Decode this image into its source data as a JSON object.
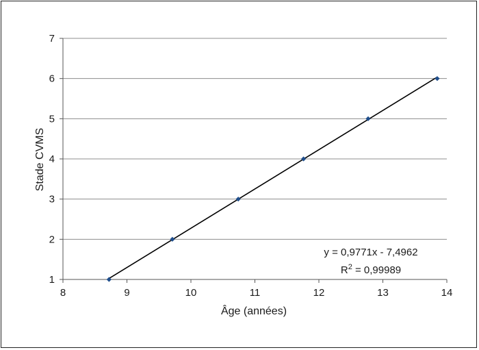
{
  "chart_data": {
    "type": "scatter",
    "xlabel": "Âge (années)",
    "ylabel": "Stade CVMS",
    "xlim": [
      8,
      14
    ],
    "ylim": [
      1,
      7
    ],
    "x_ticks": [
      "8",
      "9",
      "10",
      "11",
      "12",
      "13",
      "14"
    ],
    "y_ticks": [
      "1",
      "2",
      "3",
      "4",
      "5",
      "6",
      "7"
    ],
    "grid": "horizontal",
    "series": [
      {
        "x": [
          8.72,
          9.71,
          10.74,
          11.76,
          12.77,
          13.85
        ],
        "y": [
          1,
          2,
          3,
          4,
          5,
          6
        ],
        "color": "#1f4e8c"
      }
    ],
    "trendline": {
      "type": "linear",
      "slope": 0.9771,
      "intercept": -7.4962,
      "color": "#000000"
    },
    "annotations": {
      "equation": "y = 0,9771x - 7,4962",
      "r2_prefix": "R",
      "r2_sup": "2",
      "r2_value": " = 0,99989"
    }
  }
}
